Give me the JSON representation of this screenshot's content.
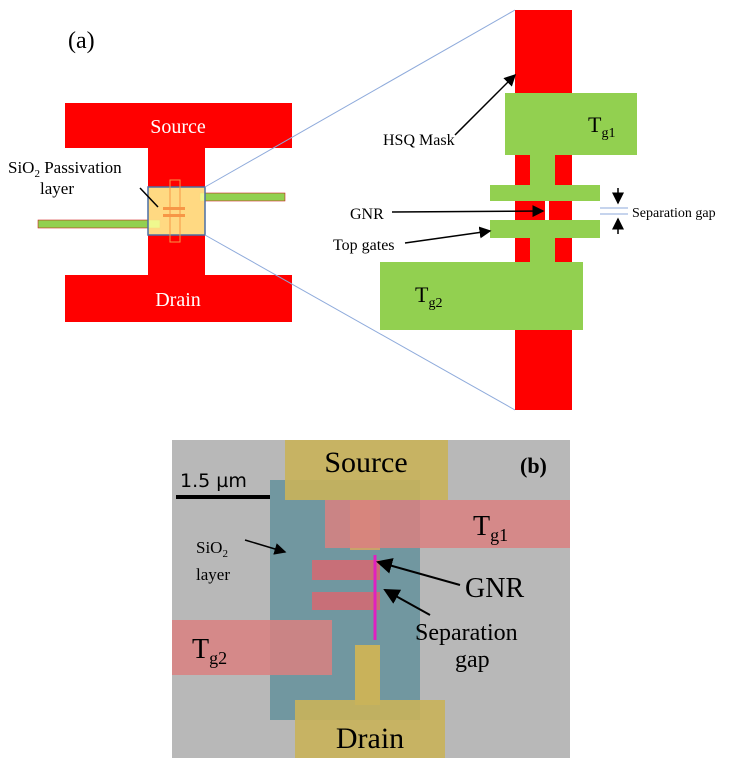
{
  "panel_a": {
    "label": "(a)",
    "source": "Source",
    "drain": "Drain",
    "passivation": {
      "main": "SiO",
      "sub": "2",
      "rest": " Passivation",
      "line2": "layer"
    },
    "hsq_mask": "HSQ Mask",
    "gnr": "GNR",
    "top_gates": "Top gates",
    "separation_gap": "Separation gap",
    "tg1": {
      "main": "T",
      "sub": "g1"
    },
    "tg2": {
      "main": "T",
      "sub": "g2"
    }
  },
  "panel_b": {
    "label": "(b)",
    "source": "Source",
    "drain": "Drain",
    "scale_bar": "1.5 µm",
    "sio2": {
      "main": "SiO",
      "sub": "2",
      "line2": "layer"
    },
    "tg1": {
      "main": "T",
      "sub": "g1"
    },
    "tg2": {
      "main": "T",
      "sub": "g2"
    },
    "gnr": "GNR",
    "separation_gap": {
      "line1": "Separation",
      "line2": "gap"
    }
  }
}
